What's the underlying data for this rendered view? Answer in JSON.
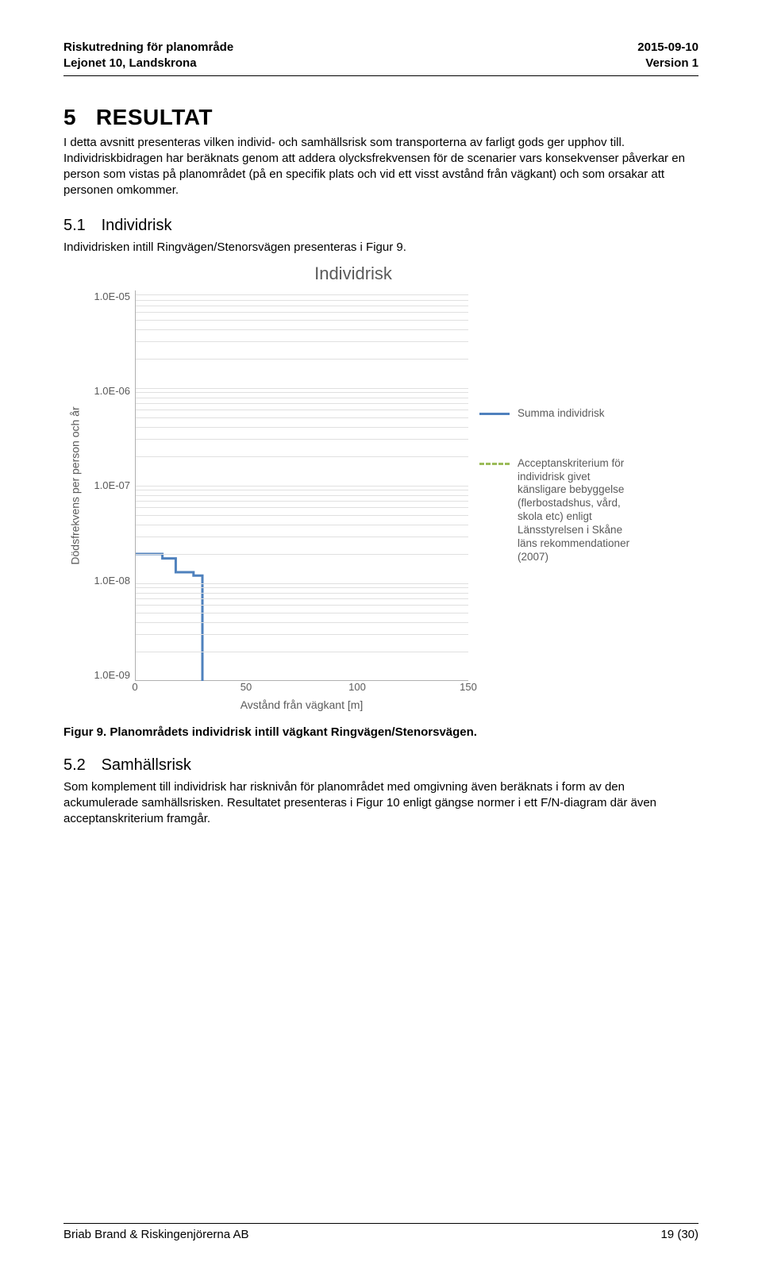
{
  "header": {
    "left_line1": "Riskutredning för planområde",
    "left_line2": "Lejonet 10, Landskrona",
    "right_line1": "2015-09-10",
    "right_line2": "Version 1"
  },
  "section": {
    "num": "5",
    "title": "RESULTAT",
    "para": "I detta avsnitt presenteras vilken individ- och samhällsrisk som transporterna av farligt gods ger upphov till. Individriskbidragen har beräknats genom att addera olycksfrekvensen för de scenarier vars konsekvenser påverkar en person som vistas på planområdet (på en specifik plats och vid ett visst avstånd från vägkant) och som orsakar att personen omkommer."
  },
  "sec51": {
    "num": "5.1",
    "title": "Individrisk",
    "para": "Individrisken intill Ringvägen/Stenorsvägen presenteras i Figur 9."
  },
  "figure9": {
    "caption_label": "Figur 9.",
    "caption_text": "Planområdets individrisk intill vägkant Ringvägen/Stenorsvägen."
  },
  "sec52": {
    "num": "5.2",
    "title": "Samhällsrisk",
    "para": "Som komplement till individrisk har risknivån för planområdet med omgivning även beräknats i form av den ackumulerade samhällsrisken. Resultatet presenteras i Figur 10 enligt gängse normer i ett F/N-diagram där även acceptanskriterium framgår."
  },
  "footer": {
    "left": "Briab Brand & Riskingenjörerna AB",
    "right": "19 (30)"
  },
  "chart": {
    "type": "line-step-logy",
    "title": "Individrisk",
    "xlabel": "Avstånd från vägkant [m]",
    "ylabel": "Dödsfrekvens per person och år",
    "xlim": [
      0,
      150
    ],
    "xtick_step": 50,
    "xticks": [
      "0",
      "50",
      "100",
      "150"
    ],
    "ylim_exp": [
      -9,
      -5
    ],
    "yticks": [
      "1.0E-05",
      "1.0E-06",
      "1.0E-07",
      "1.0E-08",
      "1.0E-09"
    ],
    "grid_color": "#e0e0e0",
    "axis_color": "#b0b0b0",
    "background_color": "#ffffff",
    "label_color": "#5a5a5a",
    "series": [
      {
        "name": "Summa individrisk",
        "color": "#4f81bd",
        "line_width": 3,
        "dash": "solid",
        "step": true,
        "points": [
          {
            "x": 0,
            "y": 2e-08
          },
          {
            "x": 12,
            "y": 1.8e-08
          },
          {
            "x": 18,
            "y": 1.3e-08
          },
          {
            "x": 26,
            "y": 1.2e-08
          },
          {
            "x": 30,
            "y": 1e-09
          }
        ]
      }
    ],
    "legend": [
      {
        "swatch": "blue",
        "label": "Summa individrisk"
      },
      {
        "swatch": "green",
        "label": "Acceptanskriterium för individrisk givet känsligare bebyggelse (flerbostadshus, vård, skola etc) enligt Länsstyrelsen i Skåne läns rekommendationer (2007)"
      }
    ]
  }
}
